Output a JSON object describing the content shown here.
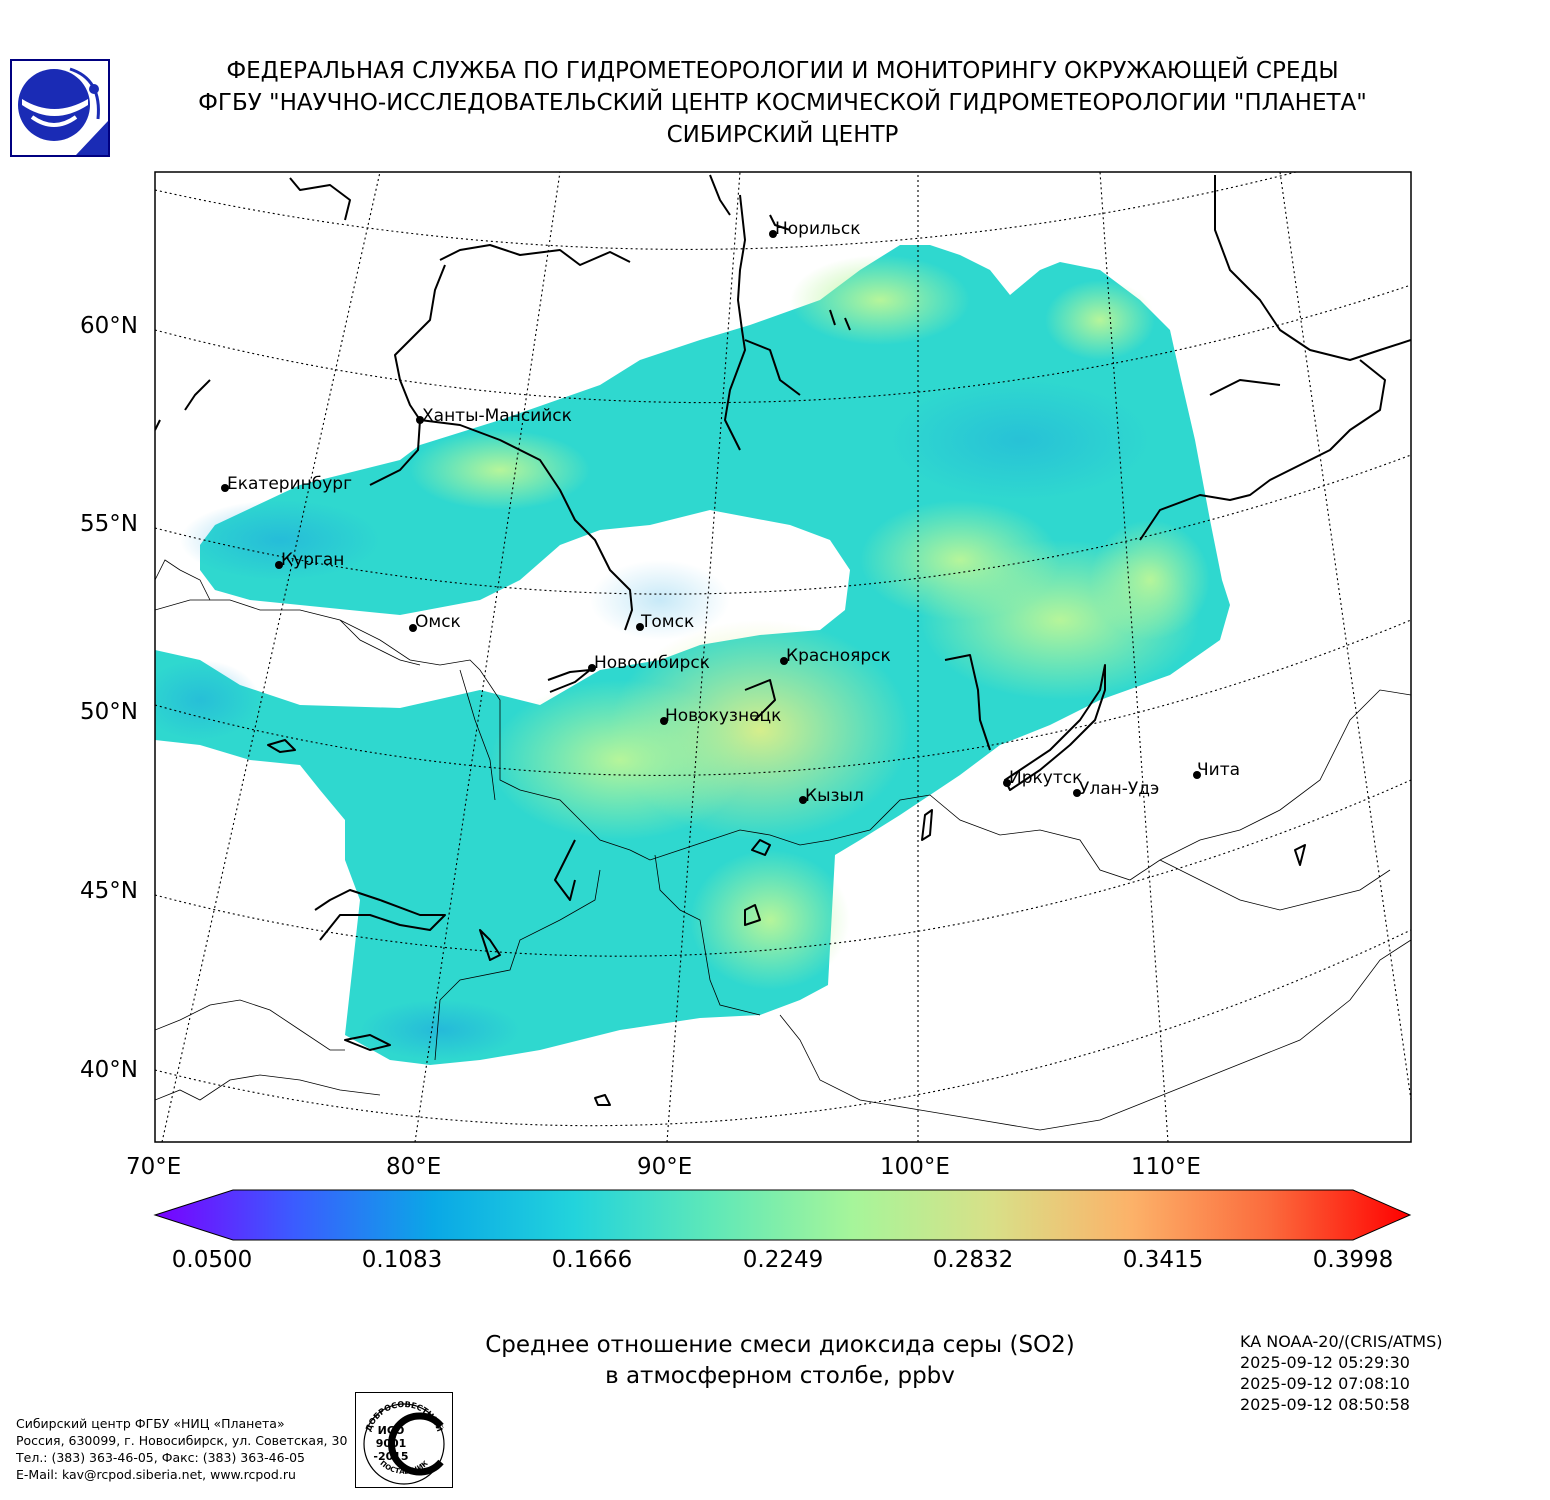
{
  "header": {
    "line1": "ФЕДЕРАЛЬНАЯ СЛУЖБА ПО ГИДРОМЕТЕОРОЛОГИИ И МОНИТОРИНГУ ОКРУЖАЮЩЕЙ СРЕДЫ",
    "line2": "ФГБУ \"НАУЧНО-ИССЛЕДОВАТЕЛЬСКИЙ ЦЕНТР КОСМИЧЕСКОЙ ГИДРОМЕТЕОРОЛОГИИ \"ПЛАНЕТА\"",
    "line3": "СИБИРСКИЙ ЦЕНТР"
  },
  "map": {
    "lat_labels": [
      "60°N",
      "55°N",
      "50°N",
      "45°N",
      "40°N"
    ],
    "lon_labels": [
      "70°E",
      "80°E",
      "90°E",
      "100°E",
      "110°E"
    ],
    "cities": [
      {
        "name": "Норильск"
      },
      {
        "name": "Ханты-Мансийск"
      },
      {
        "name": "Екатеринбург"
      },
      {
        "name": "Курган"
      },
      {
        "name": "Омск"
      },
      {
        "name": "Томск"
      },
      {
        "name": "Новосибирск"
      },
      {
        "name": "Красноярск"
      },
      {
        "name": "Новокузнецк"
      },
      {
        "name": "Кызыл"
      },
      {
        "name": "Иркутск"
      },
      {
        "name": "Улан-Удэ"
      },
      {
        "name": "Чита"
      }
    ]
  },
  "colorbar": {
    "ticks": [
      "0.0500",
      "0.1083",
      "0.1666",
      "0.2249",
      "0.2832",
      "0.3415",
      "0.3998"
    ],
    "colors": [
      "#7a00ff",
      "#3b5cff",
      "#0aa8e6",
      "#22d3dc",
      "#5fe8b8",
      "#a6f59a",
      "#d8e088",
      "#fcb269",
      "#fb6a3c",
      "#ff0000"
    ]
  },
  "caption": {
    "line1": "Среднее отношение смеси диоксида серы (SO2)",
    "line2": "в атмосферном столбе, ppbv"
  },
  "satellite": {
    "name": "KA NOAA-20/(CRIS/ATMS)",
    "times": [
      "2025-09-12 05:29:30",
      "2025-09-12 07:08:10",
      "2025-09-12 08:50:58"
    ]
  },
  "address": {
    "line1": "Сибирский центр ФГБУ «НИЦ «Планета»",
    "line2": "Россия, 630099, г. Новосибирск, ул. Советская, 30",
    "line3": "Тел.: (383) 363-46-05, Факс: (383) 363-46-05",
    "line4": "E-Mail: kav@rcpod.siberia.net, www.rcpod.ru"
  },
  "iso_logo": {
    "top_text": "ДОБРОСОВЕСТНЫЙ",
    "bottom_text": "ПОСТАВЩИК",
    "center_text": [
      "ИСО",
      "9001",
      "-2015"
    ]
  }
}
